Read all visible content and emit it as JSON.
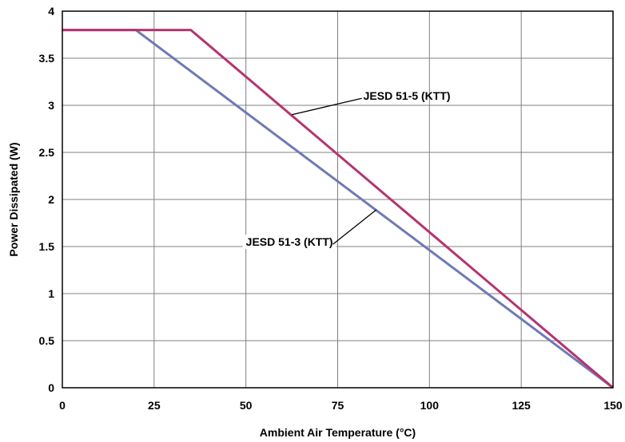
{
  "chart_data": {
    "type": "line",
    "xlabel": "Ambient Air Temperature (°C)",
    "ylabel": "Power Dissipated (W)",
    "xlim": [
      0,
      150
    ],
    "ylim": [
      0,
      4
    ],
    "x_ticks": [
      0,
      25,
      50,
      75,
      100,
      125,
      150
    ],
    "y_ticks": [
      0,
      0.5,
      1,
      1.5,
      2,
      2.5,
      3,
      3.5,
      4
    ],
    "x_tick_labels": [
      "0",
      "25",
      "50",
      "75",
      "100",
      "125",
      "150"
    ],
    "y_tick_labels": [
      "0",
      "0.5",
      "1",
      "1.5",
      "2",
      "2.5",
      "3",
      "3.5",
      "4"
    ],
    "grid": true,
    "series": [
      {
        "name": "JESD 51-5 (KTT)",
        "color": "#b5346f",
        "points": [
          [
            0,
            3.8
          ],
          [
            35,
            3.8
          ],
          [
            150,
            0
          ]
        ]
      },
      {
        "name": "JESD 51-3 (KTT)",
        "color": "#6f7ab4",
        "points": [
          [
            0,
            3.8
          ],
          [
            20,
            3.8
          ],
          [
            150,
            0
          ]
        ]
      }
    ],
    "annotations": [
      {
        "text": "JESD 51-5 (KTT)",
        "series": 0,
        "label_at": [
          82,
          3.1
        ],
        "points_to": [
          62.5,
          2.9
        ]
      },
      {
        "text": "JESD 51-3 (KTT)",
        "series": 1,
        "label_at": [
          50,
          1.55
        ],
        "points_to": [
          85.5,
          1.89
        ]
      }
    ]
  }
}
